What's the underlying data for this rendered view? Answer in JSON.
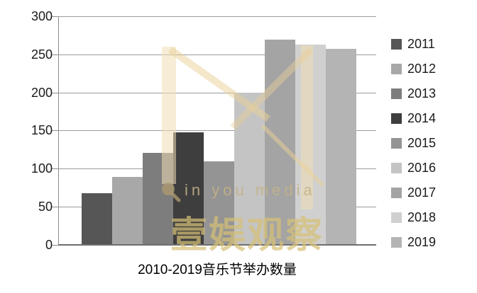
{
  "chart_data": {
    "type": "bar",
    "title": "2010-2019音乐节举办数量",
    "series": [
      {
        "name": "2011",
        "value": 68,
        "color": "#565656"
      },
      {
        "name": "2012",
        "value": 89,
        "color": "#a8a8a8"
      },
      {
        "name": "2013",
        "value": 121,
        "color": "#7d7d7d"
      },
      {
        "name": "2014",
        "value": 148,
        "color": "#3e3e3e"
      },
      {
        "name": "2015",
        "value": 110,
        "color": "#949494"
      },
      {
        "name": "2016",
        "value": 200,
        "color": "#c4c4c4"
      },
      {
        "name": "2017",
        "value": 269,
        "color": "#a4a4a4"
      },
      {
        "name": "2018",
        "value": 263,
        "color": "#d0d0d0"
      },
      {
        "name": "2019",
        "value": 257,
        "color": "#b4b4b4"
      }
    ],
    "ylim": [
      0,
      300
    ],
    "ytick_step": 50,
    "ytick_labels": [
      "0",
      "50",
      "100",
      "150",
      "200",
      "250",
      "300"
    ],
    "grid": true,
    "legend_position": "right",
    "xlabel": "",
    "ylabel": ""
  },
  "watermark": {
    "logo": "m-logo",
    "brand_en": "in you media",
    "brand_cn": "壹娱观察",
    "accent_color": "#e9d9ae"
  },
  "colors": {
    "background": "#ffffff",
    "gridline": "#9b9b9b",
    "axis": "#6e6e6e",
    "text": "#1a1a1a"
  }
}
